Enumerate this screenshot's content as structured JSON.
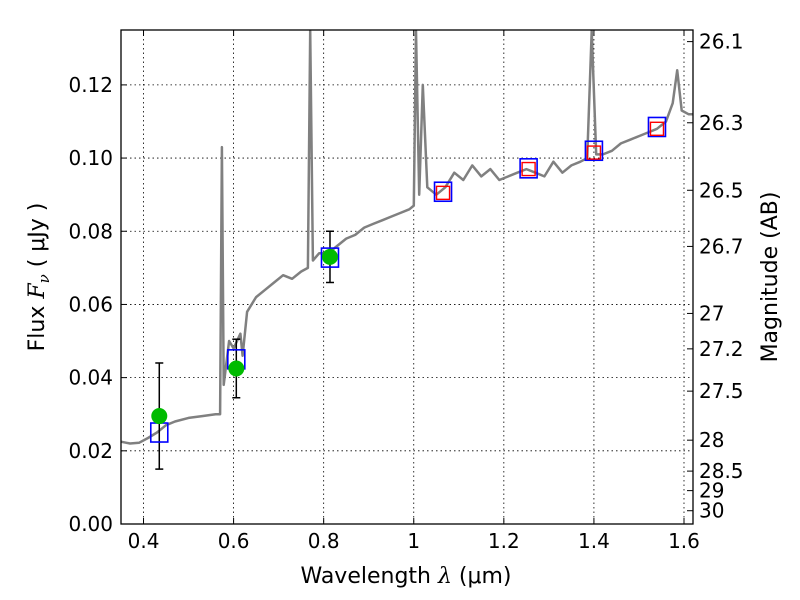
{
  "chart_data": {
    "type": "scatter",
    "xlabel": {
      "prefix": "Wavelength  ",
      "symbol": "λ",
      "unit": " (μm)"
    },
    "ylabel": {
      "prefix": "Flux  ",
      "symbol": "F",
      "sub": "ν",
      "unit": "  ( μJy )"
    },
    "ylabel_right": "Magnitude (AB)",
    "xlim": [
      0.35,
      1.62
    ],
    "ylim": [
      0.0,
      0.135
    ],
    "grid": true,
    "x_ticks": [
      {
        "v": 0.4,
        "label": "0.4"
      },
      {
        "v": 0.6,
        "label": "0.6"
      },
      {
        "v": 0.8,
        "label": "0.8"
      },
      {
        "v": 1.0,
        "label": "1"
      },
      {
        "v": 1.2,
        "label": "1.2"
      },
      {
        "v": 1.4,
        "label": "1.4"
      },
      {
        "v": 1.6,
        "label": "1.6"
      }
    ],
    "y_ticks": [
      {
        "v": 0.0,
        "label": "0.00"
      },
      {
        "v": 0.02,
        "label": "0.02"
      },
      {
        "v": 0.04,
        "label": "0.04"
      },
      {
        "v": 0.06,
        "label": "0.06"
      },
      {
        "v": 0.08,
        "label": "0.08"
      },
      {
        "v": 0.1,
        "label": "0.10"
      },
      {
        "v": 0.12,
        "label": "0.12"
      }
    ],
    "mag_ticks": [
      "26.1",
      "26.3",
      "26.5",
      "26.7",
      "27",
      "27.2",
      "27.5",
      "28",
      "28.5",
      "29",
      "30"
    ],
    "sed_model": [
      [
        0.35,
        0.0225
      ],
      [
        0.37,
        0.022
      ],
      [
        0.39,
        0.0222
      ],
      [
        0.41,
        0.0235
      ],
      [
        0.43,
        0.025
      ],
      [
        0.45,
        0.027
      ],
      [
        0.47,
        0.028
      ],
      [
        0.5,
        0.029
      ],
      [
        0.53,
        0.0295
      ],
      [
        0.56,
        0.03
      ],
      [
        0.57,
        0.03
      ],
      [
        0.574,
        0.103
      ],
      [
        0.578,
        0.038
      ],
      [
        0.59,
        0.05
      ],
      [
        0.6,
        0.048
      ],
      [
        0.615,
        0.052
      ],
      [
        0.62,
        0.046
      ],
      [
        0.63,
        0.058
      ],
      [
        0.65,
        0.062
      ],
      [
        0.67,
        0.064
      ],
      [
        0.69,
        0.066
      ],
      [
        0.71,
        0.068
      ],
      [
        0.73,
        0.067
      ],
      [
        0.75,
        0.069
      ],
      [
        0.765,
        0.07
      ],
      [
        0.77,
        0.135
      ],
      [
        0.776,
        0.072
      ],
      [
        0.79,
        0.074
      ],
      [
        0.81,
        0.074
      ],
      [
        0.83,
        0.076
      ],
      [
        0.85,
        0.078
      ],
      [
        0.87,
        0.079
      ],
      [
        0.89,
        0.081
      ],
      [
        0.91,
        0.082
      ],
      [
        0.93,
        0.083
      ],
      [
        0.95,
        0.084
      ],
      [
        0.97,
        0.085
      ],
      [
        0.99,
        0.086
      ],
      [
        1.0,
        0.087
      ],
      [
        1.005,
        0.135
      ],
      [
        1.012,
        0.09
      ],
      [
        1.02,
        0.12
      ],
      [
        1.03,
        0.092
      ],
      [
        1.05,
        0.09
      ],
      [
        1.07,
        0.092
      ],
      [
        1.09,
        0.096
      ],
      [
        1.11,
        0.094
      ],
      [
        1.13,
        0.098
      ],
      [
        1.15,
        0.095
      ],
      [
        1.17,
        0.097
      ],
      [
        1.19,
        0.094
      ],
      [
        1.21,
        0.095
      ],
      [
        1.23,
        0.096
      ],
      [
        1.25,
        0.097
      ],
      [
        1.27,
        0.096
      ],
      [
        1.29,
        0.095
      ],
      [
        1.31,
        0.099
      ],
      [
        1.33,
        0.096
      ],
      [
        1.35,
        0.098
      ],
      [
        1.37,
        0.099
      ],
      [
        1.385,
        0.1
      ],
      [
        1.395,
        0.135
      ],
      [
        1.405,
        0.101
      ],
      [
        1.42,
        0.101
      ],
      [
        1.44,
        0.102
      ],
      [
        1.46,
        0.104
      ],
      [
        1.48,
        0.105
      ],
      [
        1.5,
        0.106
      ],
      [
        1.52,
        0.107
      ],
      [
        1.54,
        0.108
      ],
      [
        1.56,
        0.11
      ],
      [
        1.575,
        0.115
      ],
      [
        1.585,
        0.124
      ],
      [
        1.595,
        0.113
      ],
      [
        1.61,
        0.112
      ],
      [
        1.62,
        0.112
      ]
    ],
    "model_photometry": [
      {
        "x": 0.435,
        "y": 0.025
      },
      {
        "x": 0.606,
        "y": 0.045
      },
      {
        "x": 0.814,
        "y": 0.0728
      },
      {
        "x": 1.065,
        "y": 0.0908
      },
      {
        "x": 1.255,
        "y": 0.0972
      },
      {
        "x": 1.4,
        "y": 0.102
      },
      {
        "x": 1.54,
        "y": 0.1085
      }
    ],
    "observed": [
      {
        "x": 0.435,
        "y": 0.0295,
        "err": 0.0145
      },
      {
        "x": 0.606,
        "y": 0.0425,
        "err": 0.008
      },
      {
        "x": 0.814,
        "y": 0.073,
        "err": 0.007
      },
      {
        "x": 1.065,
        "y": 0.0905
      },
      {
        "x": 1.255,
        "y": 0.097
      },
      {
        "x": 1.4,
        "y": 0.1015
      },
      {
        "x": 1.54,
        "y": 0.108
      }
    ],
    "colors": {
      "sed": "#808080",
      "model_box": "#0000ff",
      "observed_dot": "#00bb00",
      "upper_obs": "#ff0000",
      "error_bar": "#000000"
    }
  }
}
